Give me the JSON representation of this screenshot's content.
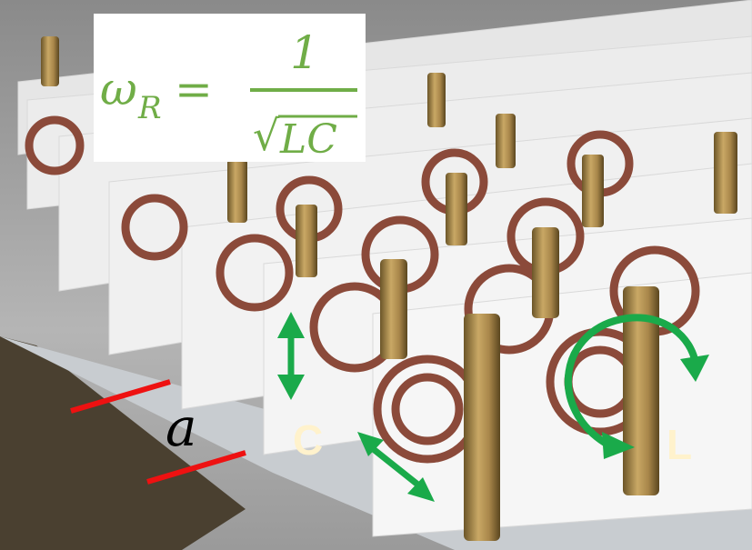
{
  "formula": {
    "lhs": "ω",
    "subscript": "R",
    "equals": "=",
    "numerator": "1",
    "radical": "√",
    "radicand": "LC"
  },
  "labels": {
    "spacing": "a",
    "capacitance": "C",
    "inductance": "L"
  }
}
